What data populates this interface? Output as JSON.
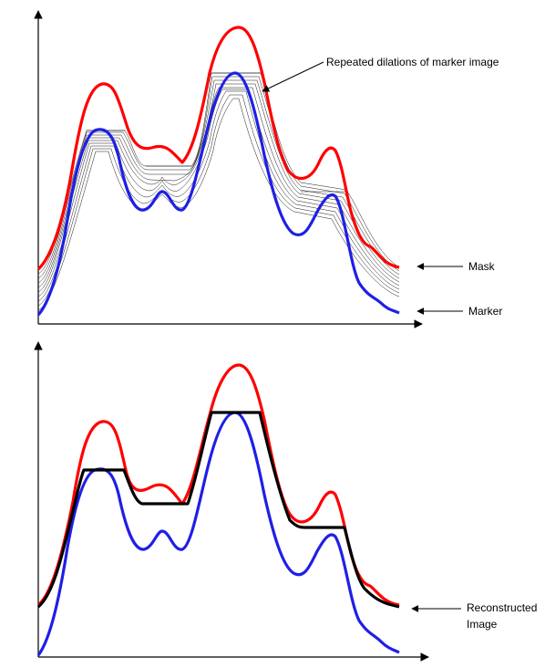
{
  "labels": {
    "top_dilations": "Repeated dilations of marker image",
    "top_mask": "Mask",
    "top_marker": "Marker",
    "bottom_reconstructed_line1": "Reconstructed",
    "bottom_reconstructed_line2": "Image"
  },
  "colors": {
    "mask": "#ff0000",
    "marker": "#1f1fe6",
    "reconstructed": "#000000",
    "hatching": "#000000",
    "axes": "#000000"
  }
}
